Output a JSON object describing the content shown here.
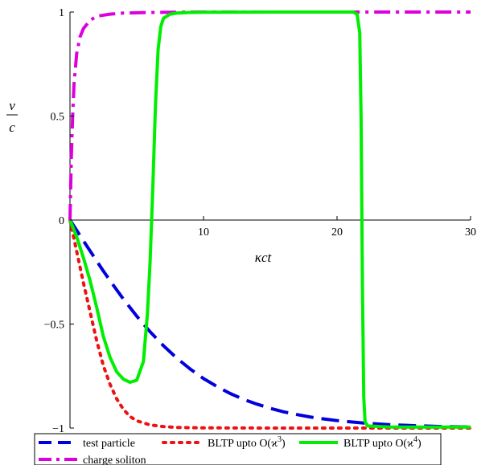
{
  "chart_data": {
    "type": "line",
    "xlabel": "κct",
    "ylabel": {
      "numerator": "v",
      "denominator": "c"
    },
    "xlim": [
      0,
      30
    ],
    "ylim": [
      -1,
      1
    ],
    "x_ticks": [
      {
        "value": 10,
        "label": "10"
      },
      {
        "value": 20,
        "label": "20"
      },
      {
        "value": 30,
        "label": "30"
      }
    ],
    "y_ticks": [
      {
        "value": 1,
        "label": "1"
      },
      {
        "value": 0.5,
        "label": "0.5"
      },
      {
        "value": 0,
        "label": "0"
      },
      {
        "value": -0.5,
        "label": "−0.5"
      },
      {
        "value": -1,
        "label": "−1"
      }
    ],
    "grid": false,
    "legend_position": "bottom",
    "series": [
      {
        "name": "test particle",
        "legend": {
          "text": "test particle",
          "sup": "",
          "suffix": ""
        },
        "color": "#0000dd",
        "dash": "dashed",
        "points": [
          [
            0,
            0
          ],
          [
            0.5,
            -0.049
          ],
          [
            1,
            -0.099
          ],
          [
            1.5,
            -0.148
          ],
          [
            2,
            -0.197
          ],
          [
            2.5,
            -0.245
          ],
          [
            3,
            -0.291
          ],
          [
            3.5,
            -0.336
          ],
          [
            4,
            -0.38
          ],
          [
            5,
            -0.462
          ],
          [
            6,
            -0.537
          ],
          [
            7,
            -0.604
          ],
          [
            8,
            -0.664
          ],
          [
            9,
            -0.716
          ],
          [
            10,
            -0.762
          ],
          [
            11,
            -0.8
          ],
          [
            12,
            -0.834
          ],
          [
            13,
            -0.862
          ],
          [
            14,
            -0.885
          ],
          [
            15,
            -0.905
          ],
          [
            16,
            -0.922
          ],
          [
            17,
            -0.935
          ],
          [
            18,
            -0.947
          ],
          [
            19,
            -0.956
          ],
          [
            20,
            -0.964
          ],
          [
            22,
            -0.976
          ],
          [
            24,
            -0.984
          ],
          [
            26,
            -0.989
          ],
          [
            28,
            -0.993
          ],
          [
            30,
            -0.995
          ]
        ]
      },
      {
        "name": "BLTP upto O(ϰ³)",
        "legend": {
          "text": "BLTP upto O(ϰ",
          "sup": "3",
          "suffix": ")"
        },
        "color": "#ee1111",
        "dash": "dotted",
        "points": [
          [
            0,
            0
          ],
          [
            0.5,
            -0.15
          ],
          [
            1,
            -0.3
          ],
          [
            1.5,
            -0.44
          ],
          [
            2,
            -0.58
          ],
          [
            2.5,
            -0.7
          ],
          [
            3,
            -0.79
          ],
          [
            3.5,
            -0.86
          ],
          [
            4,
            -0.91
          ],
          [
            4.5,
            -0.945
          ],
          [
            5,
            -0.965
          ],
          [
            6,
            -0.985
          ],
          [
            7,
            -0.993
          ],
          [
            8,
            -0.997
          ],
          [
            10,
            -0.999
          ],
          [
            15,
            -1
          ],
          [
            20,
            -1
          ],
          [
            25,
            -1
          ],
          [
            30,
            -1
          ]
        ]
      },
      {
        "name": "BLTP upto O(ϰ⁴)",
        "legend": {
          "text": "BLTP upto O(ϰ",
          "sup": "4",
          "suffix": ")"
        },
        "color": "#00ee00",
        "dash": "solid",
        "points": [
          [
            0,
            0
          ],
          [
            0.5,
            -0.08
          ],
          [
            1,
            -0.18
          ],
          [
            1.5,
            -0.29
          ],
          [
            2,
            -0.42
          ],
          [
            2.5,
            -0.56
          ],
          [
            3,
            -0.66
          ],
          [
            3.5,
            -0.73
          ],
          [
            4,
            -0.765
          ],
          [
            4.5,
            -0.78
          ],
          [
            5,
            -0.77
          ],
          [
            5.5,
            -0.68
          ],
          [
            5.8,
            -0.45
          ],
          [
            6,
            -0.2
          ],
          [
            6.2,
            0.15
          ],
          [
            6.4,
            0.55
          ],
          [
            6.6,
            0.82
          ],
          [
            6.8,
            0.93
          ],
          [
            7,
            0.97
          ],
          [
            7.5,
            0.99
          ],
          [
            8,
            0.995
          ],
          [
            9,
            0.998
          ],
          [
            10,
            0.999
          ],
          [
            15,
            1
          ],
          [
            20,
            1
          ],
          [
            21.2,
            1
          ],
          [
            21.5,
            0.99
          ],
          [
            21.7,
            0.9
          ],
          [
            21.8,
            0.5
          ],
          [
            21.9,
            -0.3
          ],
          [
            22,
            -0.85
          ],
          [
            22.1,
            -0.97
          ],
          [
            22.3,
            -0.99
          ],
          [
            24,
            -0.995
          ],
          [
            26,
            -0.995
          ],
          [
            28,
            -0.995
          ],
          [
            30,
            -0.995
          ]
        ]
      },
      {
        "name": "charge soliton",
        "legend": {
          "text": "charge soliton",
          "sup": "",
          "suffix": ""
        },
        "color": "#dd00dd",
        "dash": "dashdot",
        "points": [
          [
            0,
            0
          ],
          [
            0.1,
            0.3
          ],
          [
            0.2,
            0.5
          ],
          [
            0.3,
            0.65
          ],
          [
            0.5,
            0.8
          ],
          [
            0.75,
            0.88
          ],
          [
            1,
            0.92
          ],
          [
            1.5,
            0.96
          ],
          [
            2,
            0.98
          ],
          [
            3,
            0.99
          ],
          [
            4,
            0.995
          ],
          [
            6,
            0.998
          ],
          [
            10,
            1
          ],
          [
            20,
            1
          ],
          [
            30,
            1
          ]
        ]
      }
    ]
  }
}
